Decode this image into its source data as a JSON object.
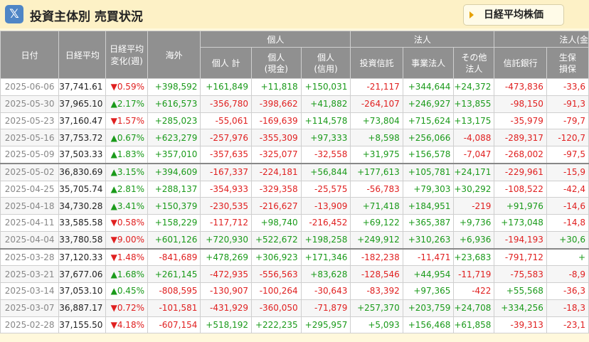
{
  "header": {
    "title": "投資主体別 売買状況",
    "x_icon_glyph": "𝕏",
    "tab_button_label": "日経平均株価"
  },
  "columns": {
    "date": "日付",
    "nikkei": "日経平均",
    "change_l1": "日経平均",
    "change_l2": "変化(週)",
    "overseas": "海外",
    "group_individual": "個人",
    "group_corporate": "法人",
    "group_corporate_fin": "法人(金",
    "ind_total": "個人 計",
    "ind_cash_l1": "個人",
    "ind_cash_l2": "(現金)",
    "ind_credit_l1": "個人",
    "ind_credit_l2": "(信用)",
    "inv_trust": "投資信託",
    "business": "事業法人",
    "other_l1": "その他",
    "other_l2": "法人",
    "trust_bank": "信託銀行",
    "life_l1": "生保",
    "life_l2": "損保"
  },
  "rows": [
    {
      "date": "2025-06-06",
      "nikkei": "37,741.61",
      "change": "▼0.59%",
      "dir": "down",
      "overseas": "+398,592",
      "ind_total": "+161,849",
      "ind_cash": "+11,818",
      "ind_credit": "+150,031",
      "inv_trust": "-21,117",
      "business": "+344,644",
      "other": "+24,372",
      "trust_bank": "-473,836",
      "life": "-33,6"
    },
    {
      "date": "2025-05-30",
      "nikkei": "37,965.10",
      "change": "▲2.17%",
      "dir": "up",
      "overseas": "+616,573",
      "ind_total": "-356,780",
      "ind_cash": "-398,662",
      "ind_credit": "+41,882",
      "inv_trust": "-264,107",
      "business": "+246,927",
      "other": "+13,855",
      "trust_bank": "-98,150",
      "life": "-91,3"
    },
    {
      "date": "2025-05-23",
      "nikkei": "37,160.47",
      "change": "▼1.57%",
      "dir": "down",
      "overseas": "+285,023",
      "ind_total": "-55,061",
      "ind_cash": "-169,639",
      "ind_credit": "+114,578",
      "inv_trust": "+73,804",
      "business": "+715,624",
      "other": "+13,175",
      "trust_bank": "-35,979",
      "life": "-79,7"
    },
    {
      "date": "2025-05-16",
      "nikkei": "37,753.72",
      "change": "▲0.67%",
      "dir": "up",
      "overseas": "+623,279",
      "ind_total": "-257,976",
      "ind_cash": "-355,309",
      "ind_credit": "+97,333",
      "inv_trust": "+8,598",
      "business": "+256,066",
      "other": "-4,088",
      "trust_bank": "-289,317",
      "life": "-120,7"
    },
    {
      "date": "2025-05-09",
      "nikkei": "37,503.33",
      "change": "▲1.83%",
      "dir": "up",
      "overseas": "+357,010",
      "ind_total": "-357,635",
      "ind_cash": "-325,077",
      "ind_credit": "-32,558",
      "inv_trust": "+31,975",
      "business": "+156,578",
      "other": "-7,047",
      "trust_bank": "-268,002",
      "life": "-97,5"
    },
    {
      "date": "2025-05-02",
      "nikkei": "36,830.69",
      "change": "▲3.15%",
      "dir": "up",
      "overseas": "+394,609",
      "ind_total": "-167,337",
      "ind_cash": "-224,181",
      "ind_credit": "+56,844",
      "inv_trust": "+177,613",
      "business": "+105,781",
      "other": "+24,171",
      "trust_bank": "-229,961",
      "life": "-15,9"
    },
    {
      "date": "2025-04-25",
      "nikkei": "35,705.74",
      "change": "▲2.81%",
      "dir": "up",
      "overseas": "+288,137",
      "ind_total": "-354,933",
      "ind_cash": "-329,358",
      "ind_credit": "-25,575",
      "inv_trust": "-56,783",
      "business": "+79,303",
      "other": "+30,292",
      "trust_bank": "-108,522",
      "life": "-42,4"
    },
    {
      "date": "2025-04-18",
      "nikkei": "34,730.28",
      "change": "▲3.41%",
      "dir": "up",
      "overseas": "+150,379",
      "ind_total": "-230,535",
      "ind_cash": "-216,627",
      "ind_credit": "-13,909",
      "inv_trust": "+71,418",
      "business": "+184,951",
      "other": "-219",
      "trust_bank": "+91,976",
      "life": "-14,6"
    },
    {
      "date": "2025-04-11",
      "nikkei": "33,585.58",
      "change": "▼0.58%",
      "dir": "down",
      "overseas": "+158,229",
      "ind_total": "-117,712",
      "ind_cash": "+98,740",
      "ind_credit": "-216,452",
      "inv_trust": "+69,122",
      "business": "+365,387",
      "other": "+9,736",
      "trust_bank": "+173,048",
      "life": "-14,8"
    },
    {
      "date": "2025-04-04",
      "nikkei": "33,780.58",
      "change": "▼9.00%",
      "dir": "down",
      "overseas": "+601,126",
      "ind_total": "+720,930",
      "ind_cash": "+522,672",
      "ind_credit": "+198,258",
      "inv_trust": "+249,912",
      "business": "+310,263",
      "other": "+6,936",
      "trust_bank": "-194,193",
      "life": "+30,6"
    },
    {
      "date": "2025-03-28",
      "nikkei": "37,120.33",
      "change": "▼1.48%",
      "dir": "down",
      "overseas": "-841,689",
      "ind_total": "+478,269",
      "ind_cash": "+306,923",
      "ind_credit": "+171,346",
      "inv_trust": "-182,238",
      "business": "-11,471",
      "other": "+23,683",
      "trust_bank": "-791,712",
      "life": "+"
    },
    {
      "date": "2025-03-21",
      "nikkei": "37,677.06",
      "change": "▲1.68%",
      "dir": "up",
      "overseas": "+261,145",
      "ind_total": "-472,935",
      "ind_cash": "-556,563",
      "ind_credit": "+83,628",
      "inv_trust": "-128,546",
      "business": "+44,954",
      "other": "-11,719",
      "trust_bank": "-75,583",
      "life": "-8,9"
    },
    {
      "date": "2025-03-14",
      "nikkei": "37,053.10",
      "change": "▲0.45%",
      "dir": "up",
      "overseas": "-808,595",
      "ind_total": "-130,907",
      "ind_cash": "-100,264",
      "ind_credit": "-30,643",
      "inv_trust": "-83,392",
      "business": "+97,365",
      "other": "-422",
      "trust_bank": "+55,568",
      "life": "-36,3"
    },
    {
      "date": "2025-03-07",
      "nikkei": "36,887.17",
      "change": "▼0.72%",
      "dir": "down",
      "overseas": "-101,581",
      "ind_total": "-431,929",
      "ind_cash": "-360,050",
      "ind_credit": "-71,879",
      "inv_trust": "+257,370",
      "business": "+203,759",
      "other": "+24,708",
      "trust_bank": "+334,256",
      "life": "-18,3"
    },
    {
      "date": "2025-02-28",
      "nikkei": "37,155.50",
      "change": "▼4.18%",
      "dir": "down",
      "overseas": "-607,154",
      "ind_total": "+518,192",
      "ind_cash": "+222,235",
      "ind_credit": "+295,957",
      "inv_trust": "+5,093",
      "business": "+156,468",
      "other": "+61,858",
      "trust_bank": "-39,313",
      "life": "-23,1"
    }
  ],
  "colors": {
    "positive": "#1a9a1a",
    "negative": "#e02020",
    "header_bg": "#909090",
    "page_bg": "#fff8dc"
  }
}
